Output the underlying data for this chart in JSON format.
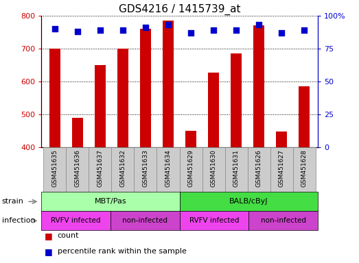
{
  "title": "GDS4216 / 1415739_at",
  "samples": [
    "GSM451635",
    "GSM451636",
    "GSM451637",
    "GSM451632",
    "GSM451633",
    "GSM451634",
    "GSM451629",
    "GSM451630",
    "GSM451631",
    "GSM451626",
    "GSM451627",
    "GSM451628"
  ],
  "counts": [
    700,
    490,
    650,
    700,
    760,
    785,
    450,
    628,
    685,
    770,
    447,
    585
  ],
  "percentile_values": [
    90,
    88,
    89,
    89,
    91,
    93,
    87,
    89,
    89,
    93,
    87,
    89
  ],
  "ylim_left": [
    400,
    800
  ],
  "ylim_right": [
    0,
    100
  ],
  "yticks_left": [
    400,
    500,
    600,
    700,
    800
  ],
  "yticks_right": [
    0,
    25,
    50,
    75,
    100
  ],
  "bar_color": "#cc0000",
  "dot_color": "#0000cc",
  "tick_label_color_left": "#cc0000",
  "tick_label_color_right": "#0000cc",
  "title_fontsize": 11,
  "tick_fontsize": 8,
  "bar_width": 0.5,
  "percentile_dot_size": 35,
  "strain_groups": [
    {
      "label": "MBT/Pas",
      "start": 0,
      "end": 6,
      "color": "#aaffaa"
    },
    {
      "label": "BALB/cByJ",
      "start": 6,
      "end": 12,
      "color": "#44dd44"
    }
  ],
  "infection_groups": [
    {
      "label": "RVFV infected",
      "start": 0,
      "end": 3,
      "color": "#ee44ee"
    },
    {
      "label": "non-infected",
      "start": 3,
      "end": 6,
      "color": "#cc44cc"
    },
    {
      "label": "RVFV infected",
      "start": 6,
      "end": 9,
      "color": "#ee44ee"
    },
    {
      "label": "non-infected",
      "start": 9,
      "end": 12,
      "color": "#cc44cc"
    }
  ],
  "legend_count_color": "#cc0000",
  "legend_dot_color": "#0000cc",
  "xtick_bg_color": "#cccccc",
  "xtick_border_color": "#888888"
}
